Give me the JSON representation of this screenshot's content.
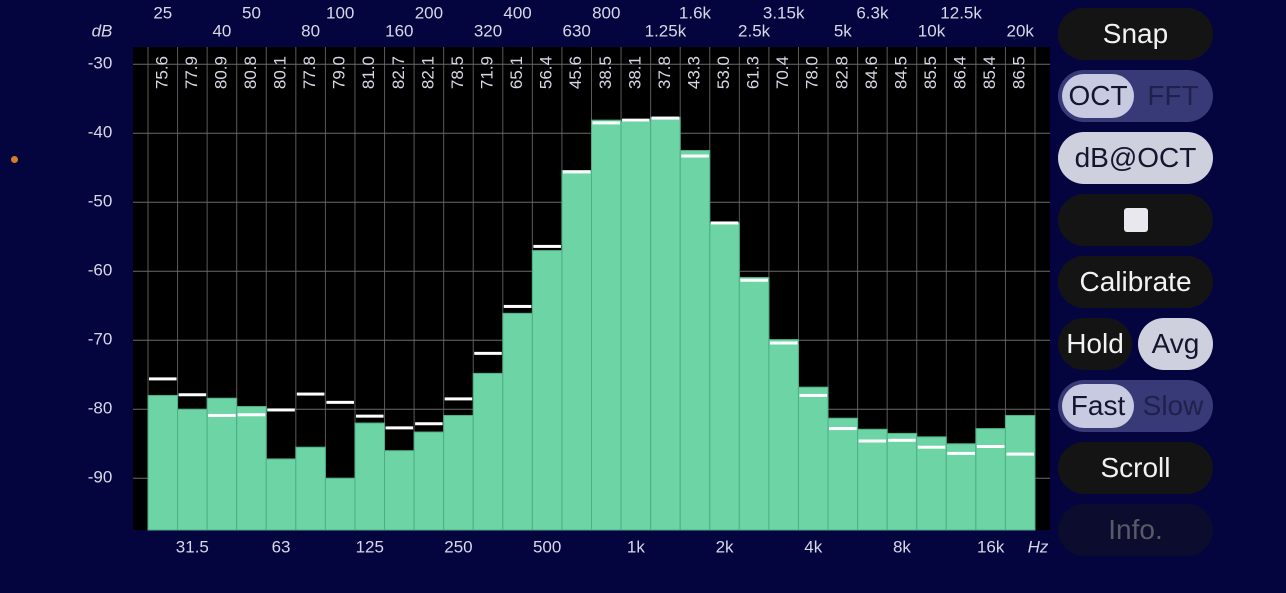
{
  "chart_data": {
    "type": "bar",
    "ylabel": "dB",
    "xlabel": "Hz",
    "categories": [
      "25",
      "31.5",
      "40",
      "50",
      "63",
      "80",
      "100",
      "125",
      "160",
      "200",
      "250",
      "320",
      "400",
      "500",
      "630",
      "800",
      "1k",
      "1.25k",
      "1.6k",
      "2k",
      "2.5k",
      "3.15k",
      "4k",
      "5k",
      "6.3k",
      "8k",
      "10k",
      "12.5k",
      "16k",
      "20k"
    ],
    "series": [
      {
        "color": "#6cd4a5",
        "values": [
          -78.0,
          -80.0,
          -78.4,
          -79.6,
          -87.2,
          -85.5,
          -90.0,
          -82.0,
          -86.0,
          -83.3,
          -80.9,
          -74.8,
          -66.1,
          -57.0,
          -45.4,
          -38.1,
          -38.3,
          -37.7,
          -42.5,
          -53.0,
          -60.9,
          -69.9,
          -76.8,
          -81.3,
          -82.9,
          -83.5,
          -84.0,
          -85.0,
          -82.8,
          -80.9
        ]
      },
      {
        "color": "#ffffff",
        "values": [
          -75.6,
          -77.9,
          -80.9,
          -80.8,
          -80.1,
          -77.8,
          -79.0,
          -81.0,
          -82.7,
          -82.1,
          -78.5,
          -71.9,
          -65.1,
          -56.4,
          -45.6,
          -38.5,
          -38.1,
          -37.8,
          -43.3,
          -53.0,
          -61.3,
          -70.4,
          -78.0,
          -82.8,
          -84.6,
          -84.5,
          -85.5,
          -86.4,
          -85.4,
          -86.5
        ],
        "value_labels": [
          "75.6",
          "77.9",
          "80.9",
          "80.8",
          "80.1",
          "77.8",
          "79.0",
          "81.0",
          "82.7",
          "82.1",
          "78.5",
          "71.9",
          "65.1",
          "56.4",
          "45.6",
          "38.5",
          "38.1",
          "37.8",
          "43.3",
          "53.0",
          "61.3",
          "70.4",
          "78.0",
          "82.8",
          "84.6",
          "84.5",
          "85.5",
          "86.4",
          "85.4",
          "86.5"
        ]
      }
    ],
    "ylim": [
      -97.5,
      -27.5
    ],
    "yticks": [
      -30,
      -40,
      -50,
      -60,
      -70,
      -80,
      -90
    ],
    "grid": true
  },
  "controls": {
    "snap": "Snap",
    "resolution": [
      "OCT",
      "FFT"
    ],
    "display": "dB@OCT",
    "calibrate": "Calibrate",
    "hold": "Hold",
    "avg": "Avg",
    "speed": [
      "Fast",
      "Slow"
    ],
    "scroll": "Scroll",
    "info": "Info."
  }
}
